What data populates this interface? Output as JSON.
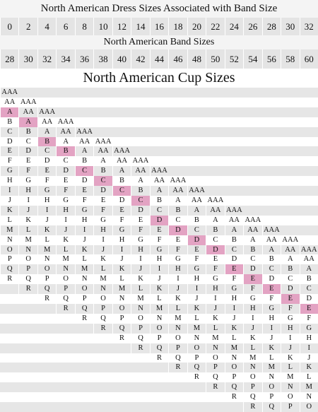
{
  "header": {
    "dress_title": "North American Dress Sizes Associated with Band Size",
    "dress_sizes": [
      "0",
      "2",
      "4",
      "6",
      "8",
      "10",
      "12",
      "14",
      "16",
      "18",
      "20",
      "22",
      "24",
      "26",
      "28",
      "30",
      "32"
    ],
    "band_title": "North American Band Sizes",
    "band_sizes": [
      "28",
      "30",
      "32",
      "34",
      "36",
      "38",
      "40",
      "42",
      "44",
      "46",
      "48",
      "50",
      "52",
      "54",
      "56",
      "58",
      "60"
    ],
    "cup_title": "North American Cup Sizes"
  },
  "cup_table": {
    "highlight": [
      2,
      2,
      3,
      3,
      4,
      4,
      4,
      4,
      5,
      5,
      5,
      5,
      6,
      6,
      6,
      6,
      6
    ],
    "columns": [
      [
        "AAA",
        "AA",
        "A",
        "B",
        "C",
        "D",
        "E",
        "F",
        "G",
        "H",
        "I",
        "J",
        "K",
        "L",
        "M",
        "N",
        "O",
        "P",
        "Q",
        "R"
      ],
      [
        "AAA",
        "AA",
        "A",
        "B",
        "C",
        "D",
        "E",
        "F",
        "G",
        "H",
        "I",
        "J",
        "K",
        "L",
        "M",
        "N",
        "O",
        "P",
        "Q",
        "R"
      ],
      [
        "AAA",
        "AA",
        "A",
        "B",
        "C",
        "D",
        "E",
        "F",
        "G",
        "H",
        "I",
        "J",
        "K",
        "L",
        "M",
        "N",
        "O",
        "P",
        "Q",
        "R"
      ],
      [
        "AAA",
        "AA",
        "A",
        "B",
        "C",
        "D",
        "E",
        "F",
        "G",
        "H",
        "I",
        "J",
        "K",
        "L",
        "M",
        "N",
        "O",
        "P",
        "Q",
        "R"
      ],
      [
        "AAA",
        "AA",
        "A",
        "B",
        "C",
        "D",
        "E",
        "F",
        "G",
        "H",
        "I",
        "J",
        "K",
        "L",
        "M",
        "N",
        "O",
        "P",
        "Q",
        "R"
      ],
      [
        "AAA",
        "AA",
        "A",
        "B",
        "C",
        "D",
        "E",
        "F",
        "G",
        "H",
        "I",
        "J",
        "K",
        "L",
        "M",
        "N",
        "O",
        "P",
        "Q",
        "R"
      ],
      [
        "AAA",
        "AA",
        "A",
        "B",
        "C",
        "D",
        "E",
        "F",
        "G",
        "H",
        "I",
        "J",
        "K",
        "L",
        "M",
        "N",
        "O",
        "P",
        "Q",
        "R"
      ],
      [
        "AAA",
        "AA",
        "A",
        "B",
        "C",
        "D",
        "E",
        "F",
        "G",
        "H",
        "I",
        "J",
        "K",
        "L",
        "M",
        "N",
        "O",
        "P",
        "Q",
        "R"
      ],
      [
        "AAA",
        "AA",
        "A",
        "B",
        "C",
        "D",
        "E",
        "F",
        "G",
        "H",
        "I",
        "J",
        "K",
        "L",
        "M",
        "N",
        "O",
        "P",
        "Q",
        "R"
      ],
      [
        "AAA",
        "AA",
        "A",
        "B",
        "C",
        "D",
        "E",
        "F",
        "G",
        "H",
        "I",
        "J",
        "K",
        "L",
        "M",
        "N",
        "O",
        "P",
        "Q",
        "R"
      ],
      [
        "AAA",
        "AA",
        "A",
        "B",
        "C",
        "D",
        "E",
        "F",
        "G",
        "H",
        "I",
        "J",
        "K",
        "L",
        "M",
        "N",
        "O",
        "P",
        "Q",
        "R"
      ],
      [
        "AAA",
        "AA",
        "A",
        "B",
        "C",
        "D",
        "E",
        "F",
        "G",
        "H",
        "I",
        "J",
        "K",
        "L",
        "M",
        "N",
        "O",
        "P",
        "Q",
        "R"
      ],
      [
        "AAA",
        "AA",
        "A",
        "B",
        "C",
        "D",
        "E",
        "F",
        "G",
        "H",
        "I",
        "J",
        "K",
        "L",
        "M",
        "N",
        "O",
        "P",
        "Q",
        "R"
      ],
      [
        "AAA",
        "AA",
        "A",
        "B",
        "C",
        "D",
        "E",
        "F",
        "G",
        "H",
        "I",
        "J",
        "K",
        "L",
        "M",
        "N",
        "O",
        "P",
        "Q",
        "R"
      ],
      [
        "AAA",
        "AA",
        "A",
        "B",
        "C",
        "D",
        "E",
        "F",
        "G",
        "H",
        "I",
        "J",
        "K",
        "L",
        "M",
        "N",
        "O",
        "P",
        "Q"
      ],
      [
        "AAA",
        "AA",
        "A",
        "B",
        "C",
        "D",
        "E",
        "F",
        "G",
        "H",
        "I",
        "J",
        "K",
        "L",
        "M",
        "N",
        "O",
        "P"
      ],
      [
        "AAA",
        "AA",
        "A",
        "B",
        "C",
        "D",
        "E",
        "F",
        "G",
        "H",
        "I",
        "J",
        "K",
        "L",
        "M",
        "N",
        "O"
      ]
    ]
  }
}
